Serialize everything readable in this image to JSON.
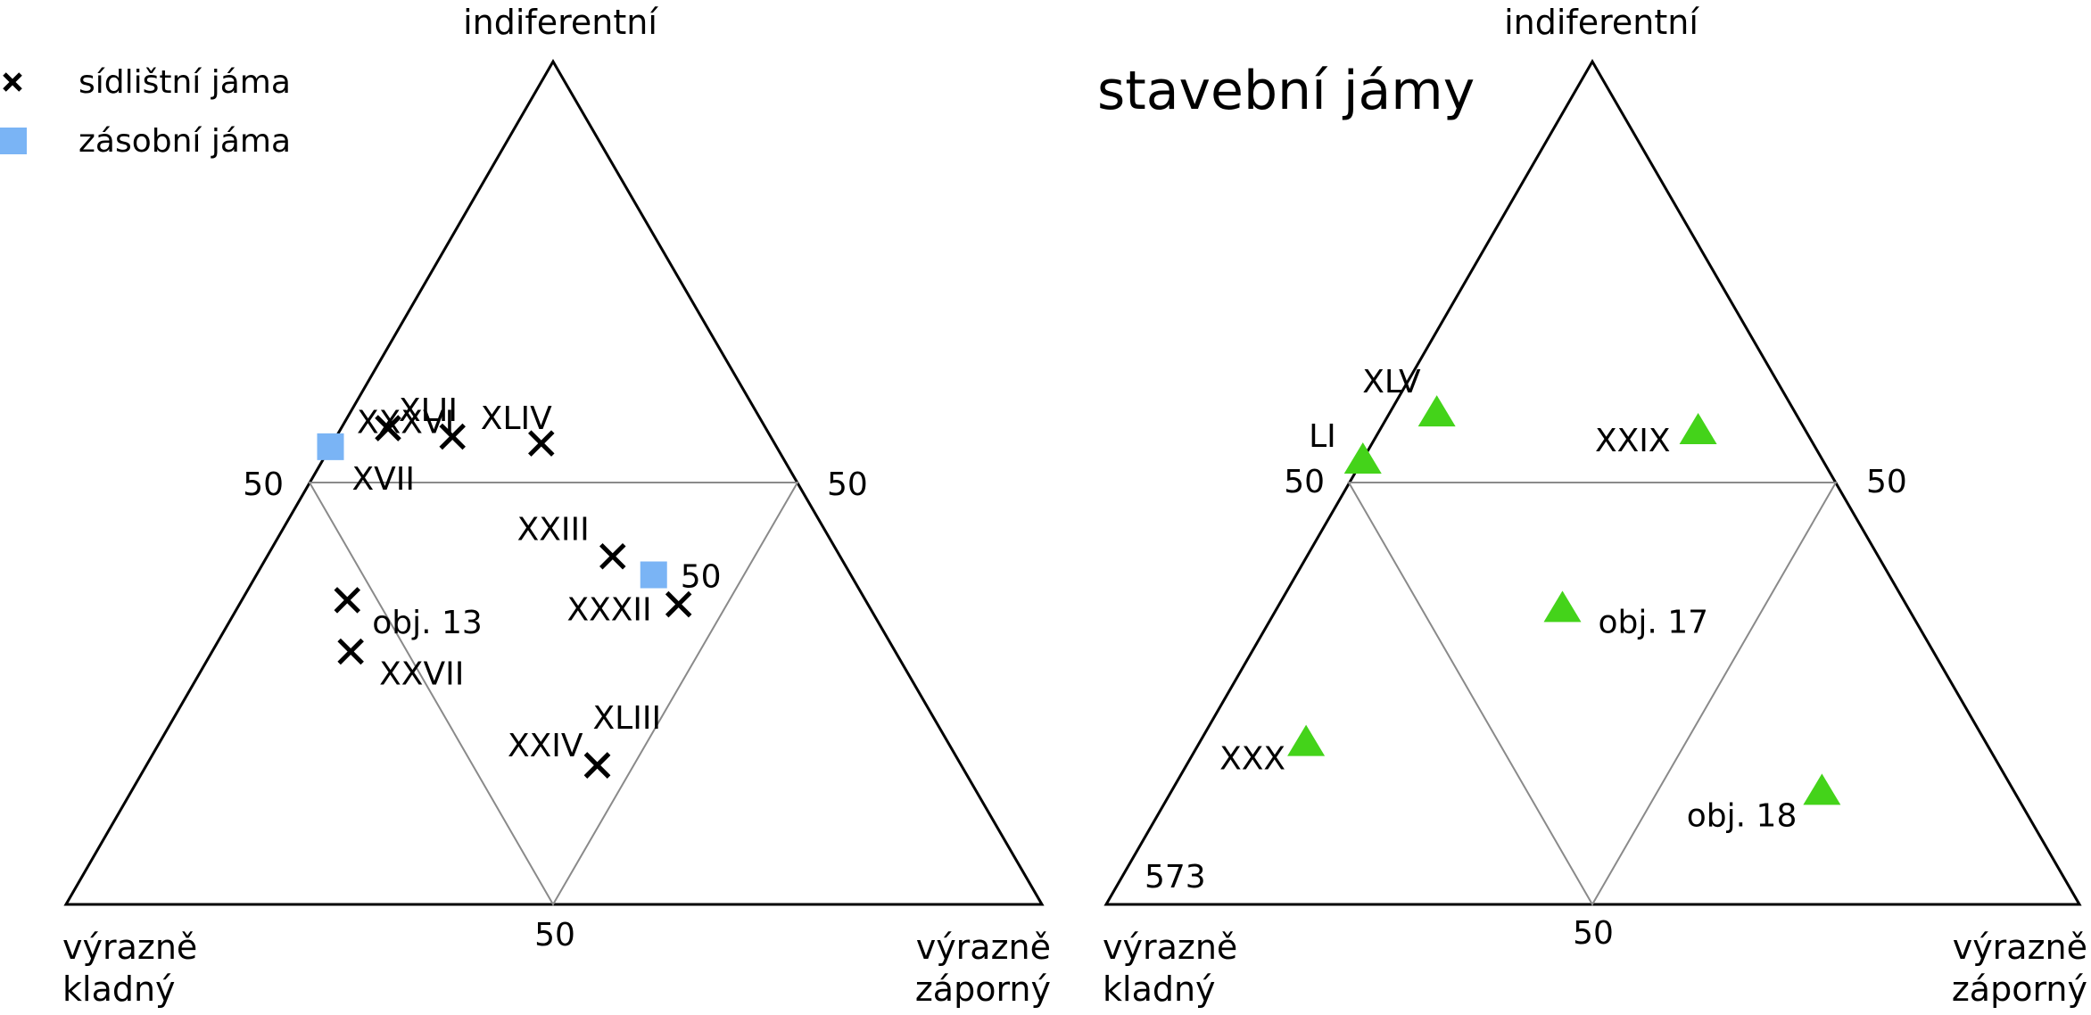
{
  "chart_data": [
    {
      "type": "scatter",
      "subtype": "ternary",
      "title": "",
      "corners": {
        "top": "indiferentní",
        "left": [
          "výrazně",
          "kladný"
        ],
        "right": [
          "výrazně",
          "záporný"
        ]
      },
      "tick_labels": {
        "left_edge": "50",
        "right_edge": "50",
        "bottom_edge": "50"
      },
      "grid": "midpoint triangle",
      "legend": {
        "placement": "top-left",
        "entries": [
          {
            "name": "sídlištní jáma",
            "marker": "x",
            "color": "#000000"
          },
          {
            "name": "zásobní jáma",
            "marker": "square",
            "color": "#7ab4f5"
          }
        ]
      },
      "points": [
        {
          "label": "XLII",
          "series": "sídlištní jáma",
          "kladny": 38.7,
          "zaporny": 4.8,
          "indiferentni": 56.5
        },
        {
          "label": "XXXVI",
          "series": "sídlištní jáma",
          "kladny": 32.6,
          "zaporny": 11.9,
          "indiferentni": 55.5
        },
        {
          "label": "XLIV",
          "series": "sídlištní jáma",
          "kladny": 23.9,
          "zaporny": 21.4,
          "indiferentni": 54.7
        },
        {
          "label": "XVII",
          "series": "zásobní jáma",
          "kladny": 45.7,
          "zaporny": 0.0,
          "indiferentni": 54.3
        },
        {
          "label": "XXIII",
          "series": "sídlištní jáma",
          "kladny": 23.3,
          "zaporny": 35.4,
          "indiferentni": 41.3
        },
        {
          "label": "50",
          "series": "zásobní jáma",
          "kladny": 20.2,
          "zaporny": 40.7,
          "indiferentni": 39.1
        },
        {
          "label": "XXXII",
          "series": "sídlištní jáma",
          "kladny": 19.4,
          "zaporny": 45.0,
          "indiferentni": 35.6
        },
        {
          "label": "XXVII",
          "series": "sídlištní jáma",
          "kladny": 55.8,
          "zaporny": 14.2,
          "indiferentni": 30.0
        },
        {
          "label": "XLIII",
          "series": "sídlištní jáma",
          "kladny": 37.3,
          "zaporny": 46.2,
          "indiferentni": 16.5
        },
        {
          "label": "XXIV",
          "series": "sídlištní jáma",
          "kladny": 37.3,
          "zaporny": 46.2,
          "indiferentni": 16.5
        },
        {
          "label": "obj. 13",
          "series": "sídlištní jáma",
          "kladny": 53.1,
          "zaporny": 10.8,
          "indiferentni": 36.1
        }
      ]
    },
    {
      "type": "scatter",
      "subtype": "ternary",
      "title": "stavební jámy",
      "corners": {
        "top": "indiferentní",
        "left": [
          "výrazně",
          "kladný"
        ],
        "right": [
          "výrazně",
          "záporný"
        ]
      },
      "tick_labels": {
        "left_edge": "50",
        "right_edge": "50",
        "bottom_edge": "50"
      },
      "grid": "midpoint triangle",
      "annotation": "573",
      "marker": {
        "shape": "triangle",
        "color": "#44d31a"
      },
      "points": [
        {
          "label": "XLV",
          "kladny": 36.8,
          "zaporny": 4.8,
          "indiferentni": 58.4
        },
        {
          "label": "LI",
          "kladny": 47.2,
          "zaporny": 0.0,
          "indiferentni": 52.8
        },
        {
          "label": "XXIX",
          "kladny": 11.0,
          "zaporny": 32.7,
          "indiferentni": 56.3
        },
        {
          "label": "obj. 17",
          "kladny": 35.5,
          "zaporny": 29.3,
          "indiferentni": 35.2
        },
        {
          "label": "XXX",
          "kladny": 69.8,
          "zaporny": 10.9,
          "indiferentni": 19.3
        },
        {
          "label": "obj. 18",
          "kladny": 19.7,
          "zaporny": 66.8,
          "indiferentni": 13.5
        }
      ]
    }
  ]
}
